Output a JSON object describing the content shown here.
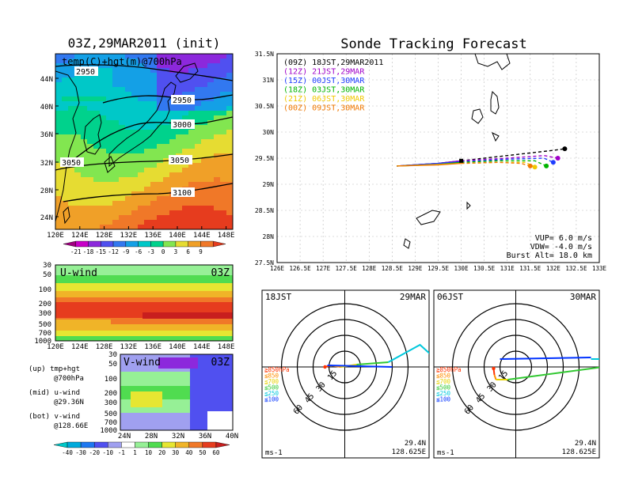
{
  "left": {
    "title": "03Z,29MAR2011 (init)",
    "map_label": "temp(C)+hgt(m)@700hPa",
    "contours": [
      "2950",
      "2950",
      "3000",
      "3050",
      "3050",
      "3100"
    ],
    "lat_ticks": [
      "44N",
      "40N",
      "36N",
      "32N",
      "28N",
      "24N"
    ],
    "lon_ticks": [
      "120E",
      "124E",
      "128E",
      "132E",
      "136E",
      "140E",
      "144E",
      "148E"
    ],
    "temp_scale": [
      "-21",
      "-18",
      "-15",
      "-12",
      "-9",
      "-6",
      "-3",
      "0",
      "3",
      "6",
      "9"
    ],
    "temp_colors": [
      "#a00080",
      "#c800c8",
      "#8c28dc",
      "#5050f0",
      "#3278f0",
      "#14a0e6",
      "#00c8c8",
      "#00d28c",
      "#82e650",
      "#e6dc32",
      "#f0a028",
      "#f07828",
      "#e63c1e"
    ],
    "uwind": {
      "label": "U-wind",
      "time": "03Z",
      "p_ticks": [
        "30",
        "50",
        "100",
        "200",
        "300",
        "500",
        "700",
        "1000"
      ],
      "lon_ticks": [
        "120E",
        "124E",
        "128E",
        "132E",
        "136E",
        "140E",
        "144E",
        "148E"
      ]
    },
    "vwind": {
      "label": "V-wind",
      "time": "03Z",
      "p_ticks": [
        "30",
        "50",
        "100",
        "200",
        "300",
        "500",
        "700",
        "1000"
      ],
      "lat_ticks": [
        "24N",
        "28N",
        "32N",
        "36N",
        "40N"
      ]
    },
    "legend_notes": [
      {
        "line1": "(up) tmp+hgt",
        "line2": "@700hPa"
      },
      {
        "line1": "(mid) u-wind",
        "line2": "@29.36N"
      },
      {
        "line1": "(bot) v-wind",
        "line2": "@128.66E"
      }
    ],
    "wind_scale": [
      "-40",
      "-30",
      "-20",
      "-10",
      "-1",
      "1",
      "10",
      "20",
      "30",
      "40",
      "50",
      "60"
    ],
    "wind_colors": [
      "#00c8c8",
      "#00aadc",
      "#1e78f0",
      "#5050f0",
      "#a0a0f0",
      "#ffffff",
      "#96f096",
      "#50dc50",
      "#e6e632",
      "#f0b428",
      "#f07828",
      "#e63c1e",
      "#c81e1e"
    ]
  },
  "right": {
    "title": "Sonde Tracking Forecast",
    "lat_ticks": [
      "31.5N",
      "31N",
      "30.5N",
      "30N",
      "29.5N",
      "29N",
      "28.5N",
      "28N",
      "27.5N"
    ],
    "lon_ticks": [
      "126E",
      "126.5E",
      "127E",
      "127.5E",
      "128E",
      "128.5E",
      "129E",
      "129.5E",
      "130E",
      "130.5E",
      "131E",
      "131.5E",
      "132E",
      "132.5E",
      "133E"
    ],
    "legend": [
      {
        "text": "(09Z)  18JST,29MAR2011",
        "color": "#000000"
      },
      {
        "text": "(12Z)  21JST,29MAR",
        "color": "#a000c8"
      },
      {
        "text": "(15Z)  00JST,30MAR",
        "color": "#1e3cff"
      },
      {
        "text": "(18Z)  03JST,30MAR",
        "color": "#00b400"
      },
      {
        "text": "(21Z)  06JST,30MAR",
        "color": "#f0c800"
      },
      {
        "text": "(00Z)  09JST,30MAR",
        "color": "#f07800"
      }
    ],
    "params": [
      "VUP=  6.0 m/s",
      "VDW= -4.0 m/s",
      "Burst Alt= 18.0 km"
    ]
  },
  "hodo": [
    {
      "time": "18JST",
      "date": "29MAR",
      "unit": "ms-1",
      "loc1": "29.4N",
      "loc2": "128.625E",
      "rings": [
        "15",
        "30",
        "45",
        "60"
      ],
      "levels": [
        {
          "t": "≧850hPa",
          "c": "#ff3200"
        },
        {
          "t": "≦850",
          "c": "#ff8c00"
        },
        {
          "t": "≦700",
          "c": "#e6d200"
        },
        {
          "t": "≦500",
          "c": "#32c832"
        },
        {
          "t": "≦250",
          "c": "#00c8dc"
        },
        {
          "t": "≦100",
          "c": "#0032ff"
        }
      ]
    },
    {
      "time": "06JST",
      "date": "30MAR",
      "unit": "ms-1",
      "loc1": "29.4N",
      "loc2": "128.625E",
      "rings": [
        "15",
        "30",
        "45",
        "60"
      ],
      "levels": [
        {
          "t": "≧850hPa",
          "c": "#ff3200"
        },
        {
          "t": "≦850",
          "c": "#ff8c00"
        },
        {
          "t": "≦700",
          "c": "#e6d200"
        },
        {
          "t": "≦500",
          "c": "#32c832"
        },
        {
          "t": "≦250",
          "c": "#00c8dc"
        },
        {
          "t": "≦100",
          "c": "#0032ff"
        }
      ]
    }
  ],
  "chart_data": [
    {
      "type": "heatmap",
      "title": "03Z,29MAR2011 (init)",
      "subtitle": "temp(C)+hgt(m)@700hPa",
      "xlim": [
        120,
        150
      ],
      "ylim": [
        22,
        47
      ]
    },
    {
      "type": "line",
      "title": "Sonde Tracking Forecast",
      "xlim": [
        126,
        133
      ],
      "ylim": [
        27.5,
        31.5
      ],
      "series": [
        {
          "name": "(09Z) 18JST,29MAR2011",
          "x": [
            128.6,
            129.5,
            130.0,
            131.0,
            132.0,
            132.25
          ],
          "y": [
            29.35,
            29.4,
            29.45,
            29.55,
            29.65,
            29.68
          ]
        },
        {
          "name": "(12Z) 21JST,29MAR",
          "x": [
            128.6,
            129.5,
            130.0,
            131.0,
            131.8,
            132.1
          ],
          "y": [
            29.35,
            29.4,
            29.45,
            29.5,
            29.55,
            29.5
          ]
        },
        {
          "name": "(15Z) 00JST,30MAR",
          "x": [
            128.6,
            129.5,
            130.0,
            131.0,
            131.8,
            132.0
          ],
          "y": [
            29.35,
            29.4,
            29.43,
            29.48,
            29.5,
            29.42
          ]
        },
        {
          "name": "(18Z) 03JST,30MAR",
          "x": [
            128.6,
            129.5,
            130.0,
            130.8,
            131.6,
            131.85
          ],
          "y": [
            29.35,
            29.38,
            29.42,
            29.45,
            29.45,
            29.35
          ]
        },
        {
          "name": "(21Z) 06JST,30MAR",
          "x": [
            128.6,
            129.5,
            130.0,
            130.8,
            131.4,
            131.6
          ],
          "y": [
            29.35,
            29.38,
            29.4,
            29.42,
            29.42,
            29.33
          ]
        },
        {
          "name": "(00Z) 09JST,30MAR",
          "x": [
            128.6,
            129.5,
            130.0,
            130.8,
            131.3,
            131.5
          ],
          "y": [
            29.35,
            29.37,
            29.4,
            29.42,
            29.4,
            29.35
          ]
        }
      ]
    }
  ]
}
